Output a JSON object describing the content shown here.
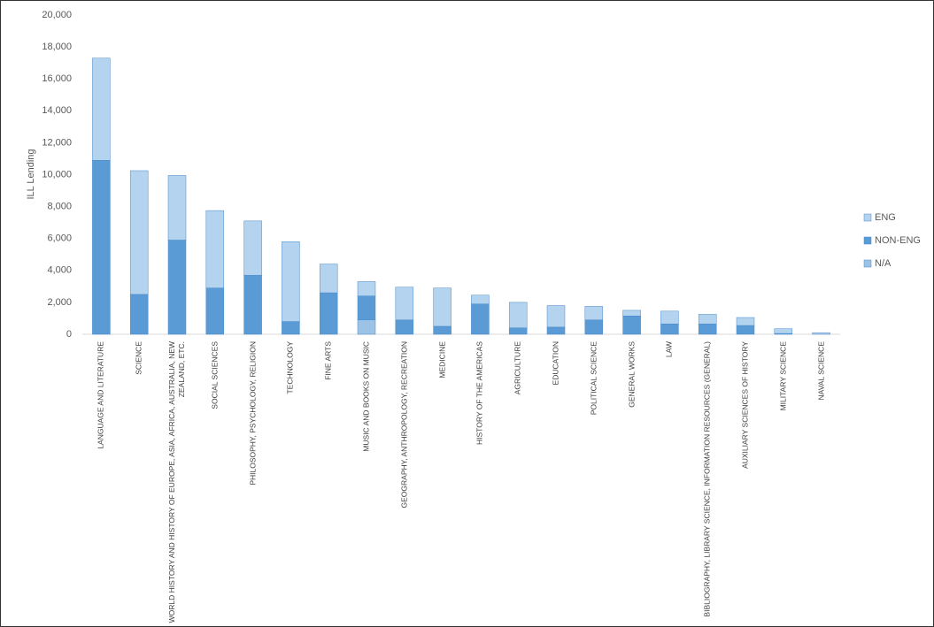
{
  "chart_data": {
    "type": "stacked-bar",
    "y_label": "ILL Lending",
    "categories": [
      "LANGUAGE AND LITERATURE",
      "SCIENCE",
      "WORLD HISTORY AND HISTORY OF EUROPE, ASIA, AFRICA, AUSTRALIA, NEW ZEALAND, ETC.",
      "SOCIAL SCIENCES",
      "PHILOSOPHY, PSYCHOLOGY, RELIGION",
      "TECHNOLOGY",
      "FINE ARTS",
      "MUSIC AND BOOKS ON MUSIC",
      "GEOGRAPHY, ANTHROPOLOGY, RECREATION",
      "MEDICINE",
      "HISTORY OF THE AMERICAS",
      "AGRICULTURE",
      "EDUCATION",
      "POLITICAL SCIENCE",
      "GENERAL WORKS",
      "LAW",
      "BIBLIOGRAPHY, LIBRARY SCIENCE, INFORMATION RESOURCES (GENERAL)",
      "AUXILIARY SCIENCES OF HISTORY",
      "MILITARY SCIENCE",
      "NAVAL SCIENCE"
    ],
    "series": [
      {
        "name": "N/A",
        "color": "#9cc3e6",
        "values": [
          0,
          0,
          0,
          0,
          0,
          0,
          0,
          900,
          0,
          0,
          0,
          0,
          0,
          0,
          0,
          0,
          0,
          0,
          0,
          0
        ]
      },
      {
        "name": "NON-ENG",
        "color": "#5b9bd5",
        "values": [
          10900,
          2500,
          5900,
          2900,
          3700,
          800,
          2600,
          1500,
          900,
          500,
          1900,
          400,
          450,
          900,
          1150,
          650,
          650,
          550,
          50,
          0
        ]
      },
      {
        "name": "ENG",
        "color": "#b4d3ee",
        "values": [
          6400,
          7750,
          4050,
          4850,
          3400,
          5000,
          1800,
          900,
          2050,
          2400,
          550,
          1600,
          1350,
          850,
          350,
          800,
          600,
          500,
          300,
          100
        ]
      }
    ],
    "ylim": [
      0,
      20000
    ],
    "yticks": [
      0,
      {
        "value": 2000,
        "label": "2,000"
      },
      {
        "value": 4000,
        "label": "4,000"
      },
      {
        "value": 6000,
        "label": "6,000"
      },
      {
        "value": 8000,
        "label": "8,000"
      },
      {
        "value": 10000,
        "label": "10,000"
      },
      {
        "value": 12000,
        "label": "12,000"
      },
      {
        "value": 14000,
        "label": "14,000"
      },
      {
        "value": 16000,
        "label": "16,000"
      },
      {
        "value": 18000,
        "label": "18,000"
      },
      {
        "value": 20000,
        "label": "20,000"
      }
    ],
    "legend": "right"
  }
}
